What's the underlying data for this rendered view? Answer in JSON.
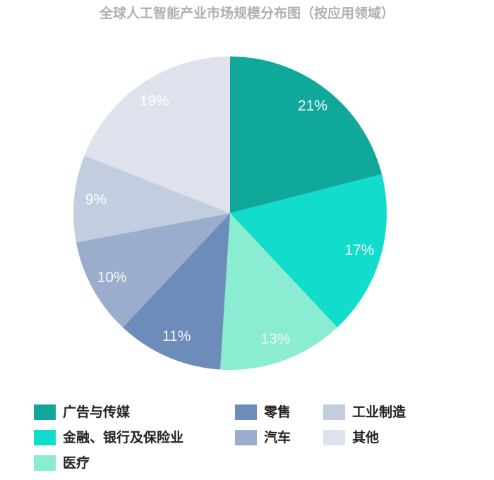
{
  "chart_data": {
    "type": "pie",
    "title": "全球人工智能产业市场规模分布图（按应用领域）",
    "categories": [
      "广告与传媒",
      "金融、银行及保险业",
      "医疗",
      "零售",
      "汽车",
      "工业制造",
      "其他"
    ],
    "values": [
      21,
      17,
      13,
      11,
      10,
      9,
      19
    ],
    "value_labels": [
      "21%",
      "17%",
      "13%",
      "11%",
      "10%",
      "9%",
      "19%"
    ],
    "colors": [
      "#0fa89a",
      "#12dccc",
      "#8aecd0",
      "#6d8cba",
      "#9aadcc",
      "#c3cde0",
      "#dde2ec"
    ]
  }
}
